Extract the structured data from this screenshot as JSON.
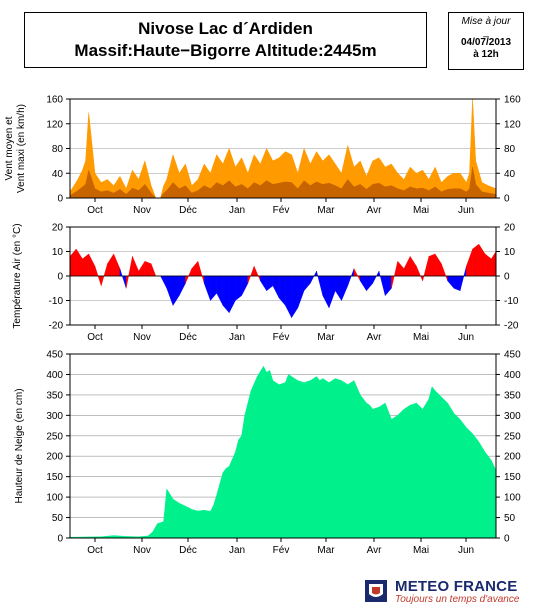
{
  "header": {
    "title_line1": "Nivose Lac d´Ardiden",
    "title_line2": "Massif:Haute−Bigorre Altitude:2445m"
  },
  "update": {
    "label": "Mise à jour",
    "separator": "_",
    "date": "04/07/2013",
    "time": "à 12h"
  },
  "brand": {
    "name": "METEO FRANCE",
    "tagline": "Toujours un temps d'avance"
  },
  "colors": {
    "wind_mean": "#c86400",
    "wind_max": "#ff9a00",
    "temp_positive": "#ff0000",
    "temp_negative": "#0000ff",
    "snow": "#00f08c",
    "grid": "#999999"
  },
  "chart_data": [
    {
      "type": "area",
      "name": "wind",
      "ylabel": "Vent moyen et Vent maxi (en km/h)",
      "ylim": [
        0,
        160
      ],
      "yticks": [
        0,
        40,
        80,
        120,
        160
      ],
      "months": [
        "Oct",
        "Nov",
        "Déc",
        "Jan",
        "Fév",
        "Mar",
        "Avr",
        "Mai",
        "Jun"
      ],
      "x_unit": "day index from Oct 1",
      "x_range": [
        0,
        273
      ],
      "series": [
        {
          "name": "Vent maxi",
          "x": [
            0,
            5,
            8,
            10,
            12,
            16,
            20,
            24,
            28,
            32,
            36,
            40,
            44,
            48,
            52,
            55,
            58,
            60,
            62,
            66,
            70,
            74,
            78,
            82,
            86,
            90,
            94,
            98,
            102,
            106,
            110,
            114,
            118,
            122,
            126,
            130,
            134,
            138,
            142,
            146,
            150,
            154,
            158,
            162,
            166,
            170,
            174,
            178,
            182,
            186,
            190,
            194,
            198,
            202,
            206,
            210,
            214,
            218,
            222,
            226,
            230,
            234,
            238,
            242,
            246,
            250,
            254,
            256,
            258,
            260,
            264,
            268,
            273
          ],
          "y": [
            10,
            30,
            45,
            60,
            138,
            40,
            25,
            30,
            20,
            35,
            15,
            45,
            30,
            60,
            20,
            0,
            0,
            20,
            30,
            70,
            40,
            55,
            20,
            30,
            55,
            40,
            70,
            55,
            80,
            50,
            65,
            40,
            70,
            55,
            80,
            60,
            65,
            75,
            70,
            40,
            80,
            55,
            75,
            60,
            70,
            55,
            40,
            85,
            50,
            60,
            35,
            60,
            65,
            50,
            55,
            40,
            30,
            50,
            40,
            45,
            30,
            50,
            25,
            35,
            40,
            40,
            25,
            40,
            160,
            60,
            25,
            20,
            15
          ]
        },
        {
          "name": "Vent moyen",
          "x": [
            0,
            5,
            8,
            10,
            12,
            16,
            20,
            24,
            28,
            32,
            36,
            40,
            44,
            48,
            52,
            55,
            58,
            60,
            62,
            66,
            70,
            74,
            78,
            82,
            86,
            90,
            94,
            98,
            102,
            106,
            110,
            114,
            118,
            122,
            126,
            130,
            134,
            138,
            142,
            146,
            150,
            154,
            158,
            162,
            166,
            170,
            174,
            178,
            182,
            186,
            190,
            194,
            198,
            202,
            206,
            210,
            214,
            218,
            222,
            226,
            230,
            234,
            238,
            242,
            246,
            250,
            254,
            256,
            258,
            260,
            264,
            268,
            273
          ],
          "y": [
            4,
            12,
            18,
            22,
            45,
            15,
            10,
            12,
            8,
            14,
            6,
            16,
            12,
            22,
            8,
            0,
            0,
            8,
            12,
            25,
            15,
            20,
            8,
            12,
            20,
            15,
            25,
            20,
            28,
            18,
            22,
            15,
            25,
            20,
            28,
            22,
            24,
            26,
            25,
            15,
            28,
            20,
            26,
            22,
            24,
            20,
            15,
            30,
            18,
            22,
            14,
            22,
            24,
            18,
            20,
            15,
            12,
            18,
            15,
            16,
            12,
            18,
            10,
            14,
            15,
            15,
            10,
            15,
            50,
            22,
            10,
            8,
            6
          ]
        }
      ]
    },
    {
      "type": "area",
      "name": "temperature",
      "ylabel": "Température Air (en °C)",
      "ylim": [
        -20,
        20
      ],
      "yticks": [
        -20,
        -10,
        0,
        10,
        20
      ],
      "months": [
        "Oct",
        "Nov",
        "Déc",
        "Jan",
        "Fév",
        "Mar",
        "Avr",
        "Mai",
        "Jun"
      ],
      "x_unit": "day index from Oct 1",
      "x_range": [
        0,
        273
      ],
      "series": [
        {
          "name": "Température Air",
          "x": [
            0,
            4,
            8,
            12,
            16,
            20,
            24,
            28,
            32,
            36,
            40,
            44,
            48,
            52,
            55,
            58,
            62,
            66,
            70,
            74,
            78,
            82,
            86,
            90,
            94,
            98,
            102,
            106,
            110,
            114,
            118,
            122,
            126,
            130,
            134,
            138,
            142,
            146,
            150,
            154,
            158,
            162,
            166,
            170,
            174,
            178,
            182,
            186,
            190,
            194,
            198,
            202,
            206,
            210,
            214,
            218,
            222,
            226,
            230,
            234,
            238,
            242,
            246,
            250,
            254,
            258,
            262,
            266,
            270,
            273
          ],
          "y": [
            8,
            11,
            7,
            9,
            4,
            -4,
            5,
            9,
            3,
            -5,
            8,
            2,
            6,
            5,
            0,
            0,
            -5,
            -12,
            -8,
            -3,
            3,
            6,
            -3,
            -10,
            -7,
            -12,
            -15,
            -10,
            -8,
            -3,
            4,
            -2,
            -6,
            -4,
            -9,
            -12,
            -17,
            -13,
            -6,
            -3,
            2,
            -8,
            -13,
            -6,
            -10,
            -4,
            3,
            -2,
            -6,
            -3,
            2,
            -8,
            -5,
            6,
            3,
            8,
            4,
            -2,
            8,
            9,
            5,
            -2,
            -5,
            -6,
            4,
            11,
            13,
            9,
            7,
            10
          ]
        }
      ]
    },
    {
      "type": "area",
      "name": "snow",
      "ylabel": "Hauteur de Neige (en cm)",
      "ylim": [
        0,
        450
      ],
      "yticks": [
        0,
        50,
        100,
        150,
        200,
        250,
        300,
        350,
        400,
        450
      ],
      "months": [
        "Oct",
        "Nov",
        "Déc",
        "Jan",
        "Fév",
        "Mar",
        "Avr",
        "Mai",
        "Jun"
      ],
      "x_unit": "day index from Oct 1",
      "x_range": [
        0,
        273
      ],
      "series": [
        {
          "name": "Hauteur de Neige",
          "x": [
            0,
            20,
            28,
            35,
            44,
            50,
            53,
            56,
            60,
            62,
            66,
            70,
            74,
            78,
            82,
            86,
            90,
            92,
            94,
            98,
            100,
            102,
            106,
            108,
            110,
            112,
            116,
            120,
            124,
            126,
            128,
            130,
            134,
            138,
            140,
            142,
            146,
            150,
            154,
            158,
            160,
            162,
            166,
            170,
            174,
            178,
            182,
            186,
            190,
            192,
            194,
            198,
            202,
            206,
            210,
            214,
            218,
            222,
            226,
            230,
            232,
            234,
            238,
            242,
            246,
            250,
            254,
            258,
            262,
            266,
            270,
            273
          ],
          "y": [
            2,
            3,
            6,
            4,
            3,
            5,
            15,
            35,
            40,
            120,
            95,
            85,
            78,
            70,
            66,
            68,
            65,
            80,
            105,
            160,
            170,
            175,
            210,
            240,
            250,
            300,
            360,
            395,
            420,
            405,
            410,
            385,
            375,
            380,
            400,
            395,
            385,
            380,
            385,
            395,
            385,
            390,
            380,
            390,
            385,
            375,
            385,
            350,
            330,
            325,
            315,
            320,
            330,
            290,
            300,
            315,
            325,
            330,
            315,
            340,
            370,
            360,
            345,
            330,
            305,
            290,
            270,
            255,
            235,
            210,
            190,
            165
          ]
        }
      ]
    }
  ]
}
